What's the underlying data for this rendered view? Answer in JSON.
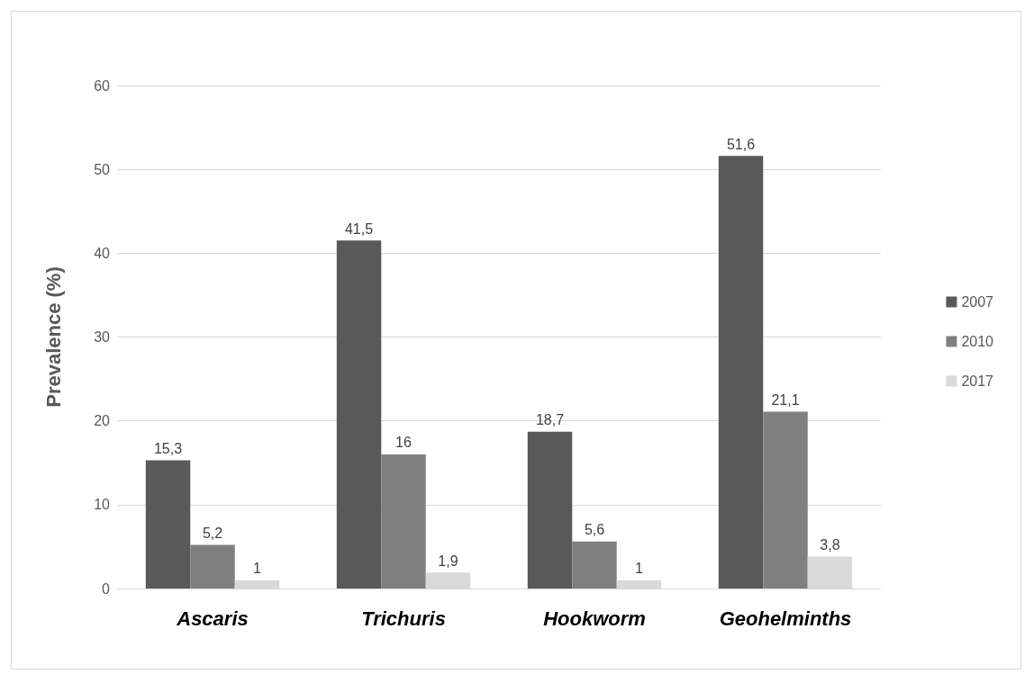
{
  "chart_data": {
    "type": "bar",
    "ylabel": "Prevalence (%)",
    "categories": [
      "Ascaris",
      "Trichuris",
      "Hookworm",
      "Geohelminths"
    ],
    "series": [
      {
        "name": "2007",
        "color": "#595959",
        "values": [
          15.3,
          41.5,
          18.7,
          51.6
        ],
        "value_labels": [
          "15,3",
          "41,5",
          "18,7",
          "51,6"
        ]
      },
      {
        "name": "2010",
        "color": "#808080",
        "values": [
          5.2,
          16,
          5.6,
          21.1
        ],
        "value_labels": [
          "5,2",
          "16",
          "5,6",
          "21,1"
        ]
      },
      {
        "name": "2017",
        "color": "#d9d9d9",
        "values": [
          1,
          1.9,
          1,
          3.8
        ],
        "value_labels": [
          "1",
          "1,9",
          "1",
          "3,8"
        ]
      }
    ],
    "ylim": [
      0,
      60
    ],
    "yticks": [
      0,
      10,
      20,
      30,
      40,
      50,
      60
    ],
    "grid": "y",
    "legend": "right"
  }
}
